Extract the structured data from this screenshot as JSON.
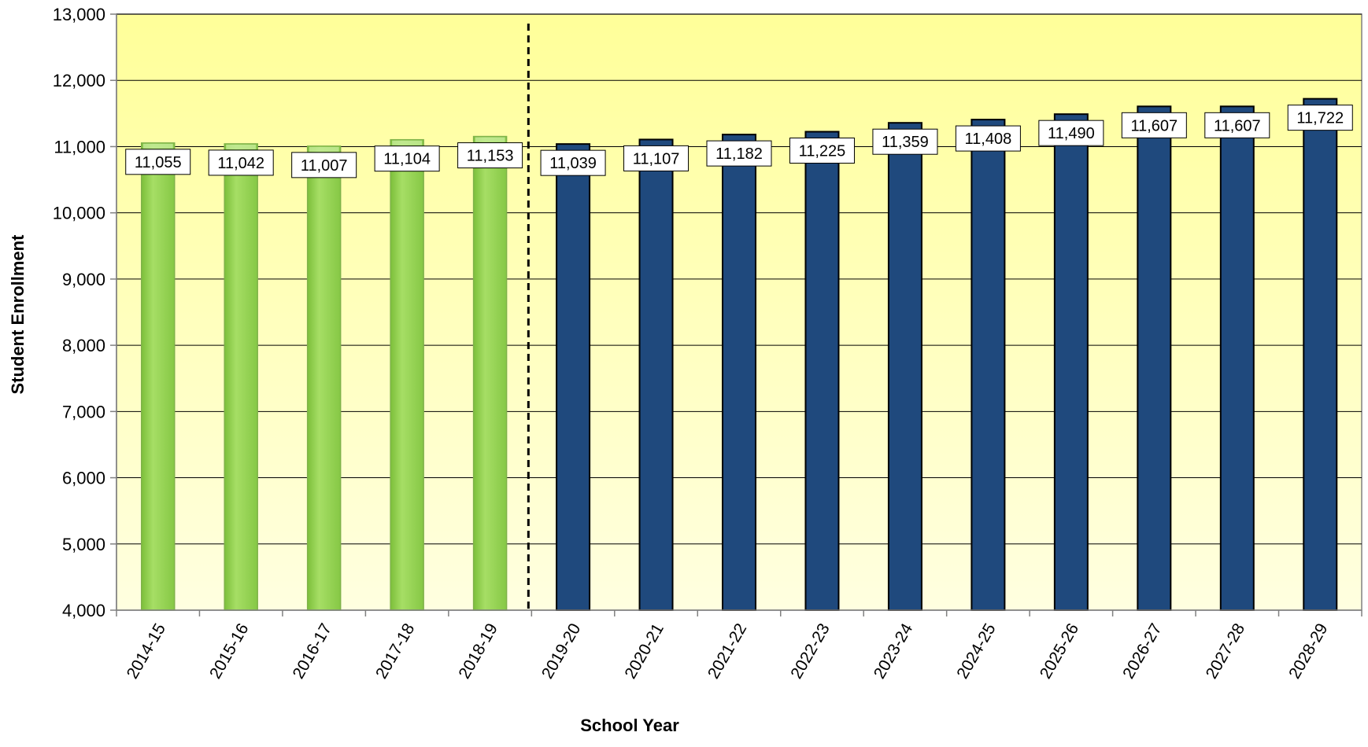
{
  "chart_data": {
    "type": "bar",
    "title": "",
    "xlabel": "School Year",
    "ylabel": "Student Enrollment",
    "ylim": [
      4000,
      13000
    ],
    "yticks": [
      4000,
      5000,
      6000,
      7000,
      8000,
      9000,
      10000,
      11000,
      12000,
      13000
    ],
    "ytick_labels": [
      "4,000",
      "5,000",
      "6,000",
      "7,000",
      "8,000",
      "9,000",
      "10,000",
      "11,000",
      "12,000",
      "13,000"
    ],
    "grid": true,
    "legend": "none",
    "divider_after_category": "2018-19",
    "categories": [
      "2014-15",
      "2015-16",
      "2016-17",
      "2017-18",
      "2018-19",
      "2019-20",
      "2020-21",
      "2021-22",
      "2022-23",
      "2023-24",
      "2024-25",
      "2025-26",
      "2026-27",
      "2027-28",
      "2028-29"
    ],
    "series": [
      {
        "values": [
          11055,
          11042,
          11007,
          11104,
          11153,
          null,
          null,
          null,
          null,
          null,
          null,
          null,
          null,
          null,
          null
        ],
        "value_labels": [
          "11,055",
          "11,042",
          "11,007",
          "11,104",
          "11,153",
          "",
          "",
          "",
          "",
          "",
          "",
          "",
          "",
          "",
          ""
        ],
        "color": "#92D050"
      },
      {
        "values": [
          null,
          null,
          null,
          null,
          null,
          11039,
          11107,
          11182,
          11225,
          11359,
          11408,
          11490,
          11607,
          11607,
          11722
        ],
        "value_labels": [
          "",
          "",
          "",
          "",
          "",
          "11,039",
          "11,107",
          "11,182",
          "11,225",
          "11,359",
          "11,408",
          "11,490",
          "11,607",
          "11,607",
          "11,722"
        ],
        "color": "#1F497D"
      }
    ],
    "colors": {
      "plot_top": "#FFFF99",
      "plot_bottom": "#FFFFE0",
      "gridline": "#000000",
      "actual_bar": "#92D050",
      "projected_bar": "#1F497D"
    }
  }
}
